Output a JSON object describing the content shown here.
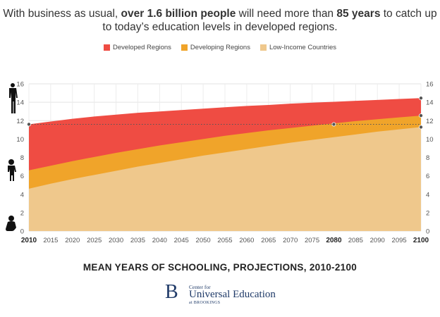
{
  "headline": {
    "p1": "With business as usual, ",
    "bold1": "over 1.6 billion people",
    "p2": " will need more than ",
    "bold2": "85 years",
    "p3": " to catch up",
    "line2": "to today’s education levels in developed regions."
  },
  "legend": [
    {
      "label": "Developed Regions",
      "color": "#ef4c43"
    },
    {
      "label": "Developing Regions",
      "color": "#f0a42a"
    },
    {
      "label": "Low-Income Countries",
      "color": "#efc88c"
    }
  ],
  "subtitle": "MEAN YEARS OF SCHOOLING, PROJECTIONS, 2010-2100",
  "logo": {
    "mark": "B",
    "line1": "Center for",
    "line2": "Universal Education",
    "line3": "at BROOKINGS"
  },
  "icons": [
    "adult-silhouette-icon",
    "child-silhouette-icon",
    "baby-silhouette-icon"
  ],
  "chart_data": {
    "type": "area",
    "stacked": false,
    "x": [
      2010,
      2015,
      2020,
      2025,
      2030,
      2035,
      2040,
      2045,
      2050,
      2055,
      2060,
      2065,
      2070,
      2075,
      2080,
      2085,
      2090,
      2095,
      2100
    ],
    "xticks": [
      "2010",
      "2015",
      "2020",
      "2025",
      "2030",
      "2035",
      "2040",
      "2045",
      "2050",
      "2055",
      "2060",
      "2065",
      "2070",
      "2075",
      "2080",
      "2085",
      "2090",
      "2095",
      "2100"
    ],
    "bold_xticks": [
      "2010",
      "2080",
      "2100"
    ],
    "ylim": [
      0,
      16
    ],
    "yticks": [
      "0",
      "2",
      "4",
      "6",
      "8",
      "10",
      "12",
      "14",
      "16"
    ],
    "grid": true,
    "series": [
      {
        "name": "Developed Regions",
        "color": "#ef4c43",
        "values": [
          11.6,
          11.9,
          12.2,
          12.45,
          12.65,
          12.85,
          13.0,
          13.15,
          13.3,
          13.45,
          13.6,
          13.7,
          13.85,
          13.95,
          14.05,
          14.15,
          14.25,
          14.35,
          14.45
        ]
      },
      {
        "name": "Developing Regions",
        "color": "#f0a42a",
        "values": [
          6.6,
          7.1,
          7.6,
          8.05,
          8.5,
          8.9,
          9.3,
          9.65,
          10.0,
          10.35,
          10.65,
          10.95,
          11.2,
          11.45,
          11.7,
          11.95,
          12.15,
          12.35,
          12.55
        ]
      },
      {
        "name": "Low-Income Countries",
        "color": "#efc88c",
        "values": [
          4.6,
          5.15,
          5.65,
          6.1,
          6.55,
          7.0,
          7.4,
          7.8,
          8.2,
          8.55,
          8.9,
          9.25,
          9.6,
          9.9,
          10.2,
          10.5,
          10.8,
          11.05,
          11.3
        ]
      }
    ],
    "reference_line": {
      "value": 11.6,
      "from": 2010,
      "to": 2100,
      "style": "dotted"
    },
    "markers": [
      {
        "x": 2010,
        "y": 11.6
      },
      {
        "x": 2080,
        "y": 11.6
      },
      {
        "x": 2100,
        "y": 14.45
      },
      {
        "x": 2100,
        "y": 12.55
      },
      {
        "x": 2100,
        "y": 11.3
      }
    ],
    "title": "",
    "xlabel": "",
    "ylabel": ""
  }
}
